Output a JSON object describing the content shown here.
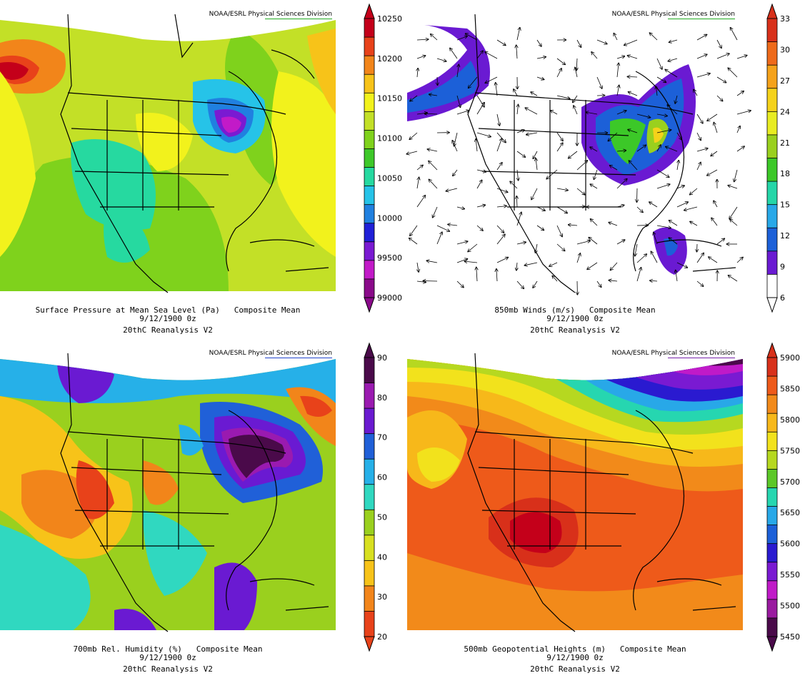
{
  "credit": "NOAA/ESRL Physical Sciences Division",
  "panels": [
    {
      "title_line": "Surface Pressure at Mean Sea Level (Pa)   Composite Mean",
      "date": "9/12/1900 0z",
      "dataset": "20thC Reanalysis V2",
      "underline_color": "#22aa22",
      "colorbar": {
        "ticks": [
          "10250",
          "10200",
          "10150",
          "10100",
          "10050",
          "10000",
          "99500",
          "99000"
        ],
        "colors": [
          "#c4001a",
          "#e8421a",
          "#f2851a",
          "#f7c319",
          "#f2f21c",
          "#c3e027",
          "#7fd21c",
          "#3ec829",
          "#26d9a0",
          "#26c3e8",
          "#2080e0",
          "#2020d8",
          "#7a1ad2",
          "#c21ac8",
          "#8a0a8a"
        ]
      }
    },
    {
      "title_line": "850mb Winds (m/s)   Composite Mean",
      "date": "9/12/1900 0z",
      "dataset": "20thC Reanalysis V2",
      "underline_color": "#22aa22",
      "colorbar": {
        "ticks": [
          "33",
          "30",
          "27",
          "24",
          "21",
          "18",
          "15",
          "12",
          "9",
          "6"
        ],
        "colors": [
          "#d8301a",
          "#ee6a1a",
          "#f5a21a",
          "#f5d21a",
          "#e8ec22",
          "#9ad01e",
          "#3cc828",
          "#25d6a8",
          "#28a8e8",
          "#1c60d8",
          "#6a1ad2",
          "#ffffff"
        ]
      }
    },
    {
      "title_line": "700mb Rel. Humidity (%)   Composite Mean",
      "date": "9/12/1900 0z",
      "dataset": "20thC Reanalysis V2",
      "underline_color": "#2244cc",
      "colorbar": {
        "ticks": [
          "90",
          "80",
          "70",
          "60",
          "50",
          "40",
          "30",
          "20"
        ],
        "colors": [
          "#4a0a4a",
          "#9a1ab0",
          "#6a1ad0",
          "#2060d8",
          "#26b0e8",
          "#30d8c0",
          "#9ad01e",
          "#d8e020",
          "#f7c319",
          "#f2851a",
          "#e8421a"
        ]
      }
    },
    {
      "title_line": "500mb Geopotential Heights (m)   Composite Mean",
      "date": "9/12/1900 0z",
      "dataset": "20thC Reanalysis V2",
      "underline_color": "#7722aa",
      "colorbar": {
        "ticks": [
          "5900",
          "5850",
          "5800",
          "5750",
          "5700",
          "5650",
          "5600",
          "5550",
          "5500",
          "5450"
        ],
        "colors": [
          "#d8301a",
          "#ee5a1a",
          "#f28a1a",
          "#f7b81a",
          "#f2e21c",
          "#b6d820",
          "#5cc828",
          "#26d6b0",
          "#28a8e8",
          "#1c60d8",
          "#2a1ad0",
          "#7a1ad2",
          "#c01ac8",
          "#9a1aa0",
          "#4a0a4a"
        ]
      }
    }
  ]
}
